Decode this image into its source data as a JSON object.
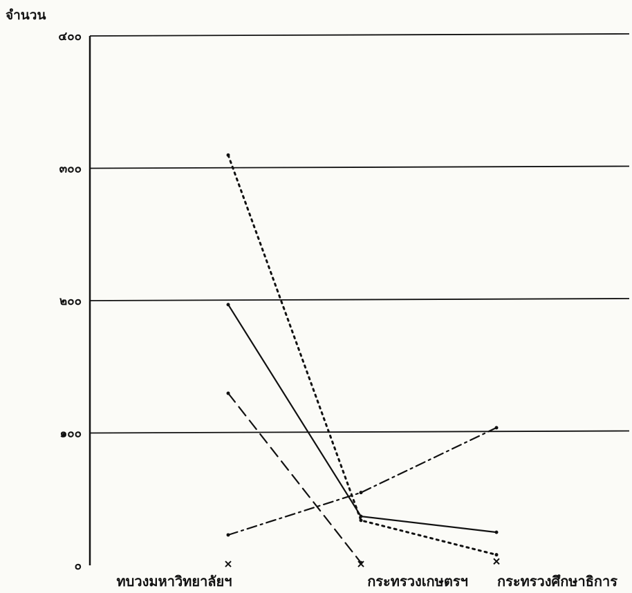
{
  "chart_data": {
    "type": "line",
    "ylabel": "จำนวน",
    "ylim": [
      0,
      400
    ],
    "grid": true,
    "yticks": [
      {
        "value": 0,
        "label": "๐"
      },
      {
        "value": 100,
        "label": "๑๐๐"
      },
      {
        "value": 200,
        "label": "๒๐๐"
      },
      {
        "value": 300,
        "label": "๓๐๐"
      },
      {
        "value": 400,
        "label": "๔๐๐"
      }
    ],
    "categories": [
      "ทบวงมหาวิทยาลัยฯ",
      "กระทรวงเกษตรฯ",
      "กระทรวงศึกษาธิการ"
    ],
    "series": [
      {
        "style": "solid",
        "color": "#111111",
        "values": [
          197,
          37,
          25
        ]
      },
      {
        "style": "dotted",
        "color": "#111111",
        "values": [
          310,
          34,
          8
        ]
      },
      {
        "style": "dash-dot",
        "color": "#111111",
        "values": [
          23,
          55,
          104
        ]
      },
      {
        "style": "dashed",
        "color": "#111111",
        "values": [
          130,
          2,
          null
        ]
      },
      {
        "style": "points",
        "color": "#111111",
        "values": [
          1,
          1,
          3
        ]
      }
    ]
  }
}
